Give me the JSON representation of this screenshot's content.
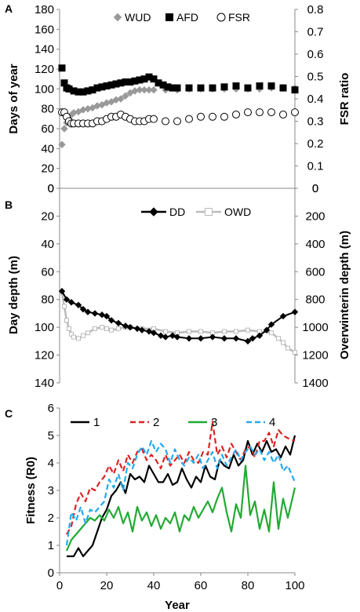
{
  "chart_data": [
    {
      "panel": "A",
      "type": "scatter",
      "ylabel": "Days of year",
      "ylabel_right": "FSR ratio",
      "ylim": [
        0,
        180
      ],
      "yticks": [
        0,
        20,
        40,
        60,
        80,
        100,
        120,
        140,
        160,
        180
      ],
      "ylim_right": [
        0,
        0.8
      ],
      "yticks_right": [
        "0",
        "0.1",
        "0.2",
        "0.3",
        "0.4",
        "0.5",
        "0.6",
        "0.7",
        "0.8"
      ],
      "xlim": [
        0,
        100
      ],
      "grid": false,
      "legend": "top",
      "series": [
        {
          "name": "WUD",
          "color": "#999999",
          "marker": "diamond",
          "axis": "left",
          "x": [
            1,
            2,
            3,
            4,
            5,
            6,
            8,
            10,
            12,
            14,
            16,
            18,
            20,
            22,
            24,
            26,
            28,
            30,
            32,
            34,
            36,
            38,
            40,
            45,
            50,
            55,
            60,
            65,
            70,
            75,
            80,
            85,
            90,
            95,
            100
          ],
          "y": [
            44,
            60,
            66,
            71,
            74,
            76,
            77,
            79,
            80,
            81,
            83,
            84,
            86,
            87,
            89,
            90,
            93,
            96,
            98,
            99,
            99,
            99,
            99,
            99,
            99,
            100,
            100,
            100,
            100,
            100,
            100,
            100,
            101,
            101,
            101
          ]
        },
        {
          "name": "AFD",
          "color": "#000000",
          "marker": "square",
          "axis": "left",
          "x": [
            1,
            2,
            3,
            4,
            6,
            8,
            10,
            12,
            14,
            16,
            18,
            20,
            22,
            24,
            26,
            28,
            30,
            32,
            34,
            36,
            38,
            40,
            42,
            44,
            46,
            48,
            50,
            55,
            60,
            65,
            70,
            75,
            80,
            85,
            90,
            95,
            100
          ],
          "y": [
            121,
            106,
            101,
            100,
            98,
            97,
            97,
            98,
            99,
            101,
            102,
            103,
            104,
            105,
            106,
            107,
            107,
            108,
            109,
            110,
            112,
            110,
            106,
            104,
            102,
            101,
            101,
            101,
            101,
            101,
            102,
            103,
            101,
            103,
            103,
            101,
            99
          ]
        },
        {
          "name": "FSR",
          "color": "#000000",
          "marker": "circle",
          "axis": "right",
          "x": [
            1,
            2,
            3,
            4,
            5,
            6,
            8,
            10,
            12,
            14,
            16,
            18,
            20,
            22,
            24,
            26,
            28,
            30,
            32,
            34,
            36,
            38,
            40,
            45,
            50,
            55,
            60,
            65,
            70,
            75,
            80,
            85,
            90,
            95,
            100
          ],
          "y": [
            0.34,
            0.34,
            0.32,
            0.3,
            0.29,
            0.29,
            0.29,
            0.29,
            0.29,
            0.29,
            0.3,
            0.3,
            0.31,
            0.32,
            0.32,
            0.33,
            0.32,
            0.31,
            0.3,
            0.3,
            0.3,
            0.31,
            0.31,
            0.3,
            0.3,
            0.31,
            0.32,
            0.32,
            0.32,
            0.33,
            0.34,
            0.34,
            0.34,
            0.33,
            0.34
          ]
        }
      ]
    },
    {
      "panel": "B",
      "type": "line",
      "ylabel": "Day depth (m)",
      "ylabel_right": "Overwinterin depth (m)",
      "ylim": [
        0,
        140
      ],
      "yticks": [
        0,
        20,
        40,
        60,
        80,
        100,
        120,
        140
      ],
      "ylim_right": [
        0,
        1400
      ],
      "yticks_right": [
        0,
        200,
        400,
        600,
        800,
        1000,
        1200,
        1400
      ],
      "inverted": true,
      "xlim": [
        0,
        100
      ],
      "grid": false,
      "legend": "top",
      "series": [
        {
          "name": "DD",
          "color": "#000000",
          "marker": "diamond",
          "axis": "left",
          "x": [
            1,
            3,
            5,
            8,
            10,
            12,
            15,
            18,
            20,
            22,
            25,
            28,
            30,
            33,
            35,
            38,
            40,
            43,
            45,
            48,
            50,
            55,
            60,
            65,
            70,
            75,
            80,
            82,
            85,
            88,
            90,
            95,
            100
          ],
          "y": [
            74,
            80,
            82,
            84,
            87,
            89,
            90,
            91,
            92,
            95,
            97,
            99,
            100,
            101,
            102,
            103,
            104,
            106,
            107,
            106,
            107,
            108,
            108,
            107,
            108,
            108,
            110,
            108,
            106,
            102,
            98,
            92,
            89
          ]
        },
        {
          "name": "OWD",
          "color": "#bbbbbb",
          "marker": "square",
          "axis": "right",
          "x": [
            1,
            2,
            3,
            4,
            5,
            6,
            8,
            10,
            12,
            15,
            18,
            20,
            22,
            25,
            28,
            30,
            35,
            40,
            45,
            50,
            55,
            60,
            65,
            70,
            75,
            80,
            85,
            90,
            93,
            95,
            97,
            100
          ],
          "y": [
            750,
            850,
            950,
            1010,
            1050,
            1070,
            1080,
            1060,
            1040,
            1010,
            1000,
            1010,
            1020,
            1010,
            1000,
            1000,
            1010,
            1010,
            1030,
            1040,
            1030,
            1030,
            1040,
            1030,
            1030,
            1020,
            1030,
            1040,
            1080,
            1110,
            1150,
            1180
          ]
        }
      ]
    },
    {
      "panel": "C",
      "type": "line",
      "ylabel": "Fitness (R0)",
      "xlabel": "Year",
      "ylim": [
        0,
        6
      ],
      "yticks": [
        0,
        1,
        2,
        3,
        4,
        5,
        6
      ],
      "xlim": [
        0,
        100
      ],
      "xticks": [
        0,
        20,
        40,
        60,
        80,
        100
      ],
      "grid": false,
      "legend": "top",
      "series": [
        {
          "name": "1",
          "color": "#000000",
          "dash": "solid",
          "x": [
            3,
            6,
            8,
            10,
            12,
            14,
            16,
            18,
            20,
            22,
            24,
            26,
            28,
            30,
            32,
            34,
            36,
            38,
            40,
            42,
            44,
            46,
            48,
            50,
            52,
            54,
            56,
            58,
            60,
            62,
            64,
            66,
            68,
            70,
            72,
            74,
            76,
            78,
            80,
            82,
            84,
            86,
            88,
            90,
            92,
            94,
            96,
            98,
            100
          ],
          "y": [
            0.6,
            0.6,
            0.9,
            0.6,
            0.8,
            1.0,
            1.5,
            2.0,
            2.3,
            2.8,
            3.0,
            3.3,
            2.9,
            3.6,
            3.4,
            3.5,
            3.3,
            3.9,
            3.6,
            3.3,
            3.3,
            3.6,
            3.2,
            3.3,
            3.8,
            3.4,
            3.1,
            3.5,
            3.3,
            3.9,
            3.5,
            3.4,
            4.1,
            3.9,
            3.8,
            4.3,
            3.9,
            4.1,
            4.8,
            4.3,
            4.7,
            4.4,
            4.8,
            4.4,
            4.5,
            4.2,
            4.6,
            4.3,
            5.0
          ]
        },
        {
          "name": "2",
          "color": "#dd2222",
          "dash": "dash",
          "x": [
            3,
            5,
            7,
            9,
            11,
            13,
            15,
            17,
            19,
            21,
            23,
            25,
            27,
            29,
            31,
            33,
            35,
            37,
            39,
            41,
            43,
            45,
            47,
            49,
            51,
            53,
            55,
            57,
            59,
            61,
            63,
            65,
            67,
            69,
            71,
            73,
            75,
            77,
            79,
            81,
            83,
            85,
            87,
            89,
            91,
            93,
            95,
            97,
            100
          ],
          "y": [
            1.4,
            1.7,
            2.5,
            2.9,
            2.6,
            3.1,
            3.0,
            3.3,
            3.5,
            3.9,
            3.6,
            4.1,
            3.7,
            4.3,
            4.0,
            4.4,
            4.5,
            4.1,
            4.3,
            4.1,
            3.8,
            4.3,
            3.9,
            4.1,
            4.3,
            4.0,
            4.4,
            4.1,
            4.0,
            4.4,
            4.3,
            5.5,
            4.3,
            4.6,
            4.2,
            4.7,
            4.4,
            4.1,
            4.5,
            4.6,
            4.2,
            4.8,
            4.8,
            5.1,
            4.6,
            5.2,
            5.0,
            4.9,
            4.8
          ]
        },
        {
          "name": "3",
          "color": "#22aa33",
          "dash": "solid",
          "x": [
            3,
            5,
            7,
            9,
            11,
            13,
            15,
            17,
            19,
            21,
            23,
            25,
            27,
            29,
            31,
            33,
            35,
            37,
            39,
            41,
            43,
            45,
            47,
            49,
            51,
            53,
            55,
            57,
            59,
            61,
            63,
            65,
            67,
            69,
            71,
            73,
            75,
            77,
            79,
            81,
            83,
            85,
            87,
            89,
            91,
            93,
            95,
            97,
            100
          ],
          "y": [
            0.8,
            1.2,
            1.4,
            1.6,
            1.8,
            2.0,
            1.9,
            2.1,
            1.9,
            2.3,
            2.0,
            2.4,
            1.8,
            2.2,
            1.5,
            2.4,
            1.9,
            2.2,
            1.7,
            2.1,
            1.6,
            2.0,
            1.8,
            2.2,
            1.5,
            2.1,
            1.9,
            2.4,
            2.0,
            2.3,
            2.6,
            2.2,
            2.7,
            3.1,
            2.2,
            1.5,
            2.5,
            2.0,
            3.9,
            2.1,
            2.6,
            1.6,
            2.3,
            1.5,
            3.3,
            1.6,
            2.7,
            2.0,
            3.1
          ]
        },
        {
          "name": "4",
          "color": "#22aaee",
          "dash": "dash",
          "x": [
            3,
            5,
            7,
            9,
            11,
            13,
            15,
            17,
            19,
            21,
            23,
            25,
            27,
            29,
            31,
            33,
            35,
            37,
            39,
            41,
            43,
            45,
            47,
            49,
            51,
            53,
            55,
            57,
            59,
            61,
            63,
            65,
            67,
            69,
            71,
            73,
            75,
            77,
            79,
            81,
            83,
            85,
            87,
            89,
            91,
            93,
            95,
            97,
            100
          ],
          "y": [
            1.0,
            2.2,
            1.9,
            2.4,
            1.8,
            2.3,
            2.2,
            2.4,
            2.6,
            3.4,
            3.1,
            3.6,
            3.0,
            4.0,
            3.8,
            4.3,
            4.6,
            4.3,
            4.8,
            4.4,
            4.7,
            4.5,
            4.0,
            4.5,
            4.1,
            3.9,
            4.2,
            4.0,
            4.3,
            3.8,
            4.1,
            4.4,
            3.8,
            4.3,
            3.9,
            4.2,
            4.5,
            4.1,
            4.4,
            4.6,
            4.3,
            4.5,
            4.1,
            4.4,
            4.0,
            4.3,
            3.7,
            3.9,
            3.3
          ]
        }
      ]
    }
  ]
}
